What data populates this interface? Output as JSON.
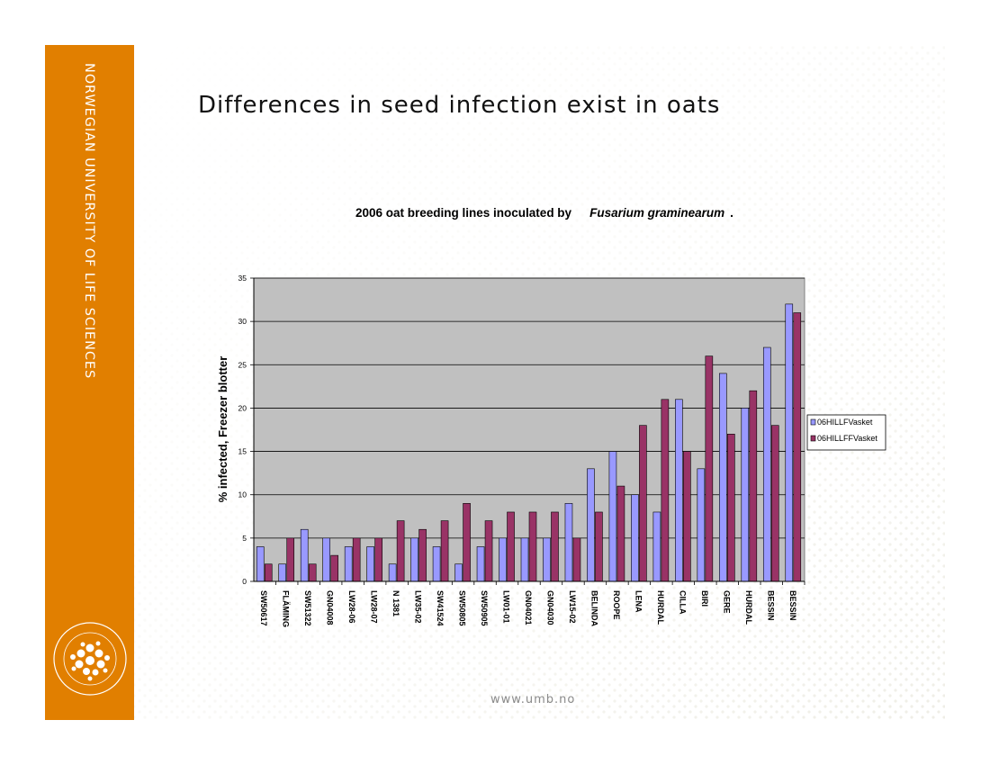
{
  "sidebar": {
    "university_name": "NORWEGIAN UNIVERSITY OF LIFE SCIENCES",
    "logo_text": "NORWEGIAN UNIVERSITY OF LIFE SCIENCES",
    "accent_color": "#e17f00"
  },
  "slide": {
    "title": "Differences in seed infection exist in oats"
  },
  "footer": {
    "url": "www.umb.no"
  },
  "chart_data": {
    "type": "bar",
    "title": "2006 oat breeding lines inoculated by",
    "title_italic": "Fusarium graminearum",
    "title_suffix": ".",
    "xlabel": "",
    "ylabel": "% infected, Freezer blotter",
    "ylim": [
      0,
      35
    ],
    "yticks": [
      0,
      5,
      10,
      15,
      20,
      25,
      30,
      35
    ],
    "grid": true,
    "legend_position": "right",
    "plot_background": "#c0c0c0",
    "categories": [
      "SW50617",
      "FLÄMING",
      "SW51322",
      "GN04008",
      "LW28-06",
      "LW28-07",
      "N 1381",
      "LW35-02",
      "SW41524",
      "SW50805",
      "SW50905",
      "LW01-01",
      "GN04021",
      "GN04030",
      "LW15-02",
      "BELINDA",
      "ROOPE",
      "LENA",
      "HURDAL",
      "CILLA",
      "BIRI",
      "GERE",
      "HURDAL",
      "BESSIN",
      "BESSIN"
    ],
    "series": [
      {
        "name": "06HILLFVasket",
        "color": "#9999ff",
        "values": [
          4,
          2,
          6,
          5,
          4,
          4,
          2,
          5,
          4,
          2,
          4,
          5,
          5,
          5,
          9,
          13,
          15,
          10,
          8,
          21,
          13,
          24,
          20,
          27,
          32
        ]
      },
      {
        "name": "06HILLFFVasket",
        "color": "#993366",
        "values": [
          2,
          5,
          2,
          3,
          5,
          5,
          7,
          6,
          7,
          9,
          7,
          8,
          8,
          8,
          5,
          8,
          11,
          18,
          21,
          15,
          26,
          17,
          22,
          18,
          31
        ]
      }
    ]
  }
}
